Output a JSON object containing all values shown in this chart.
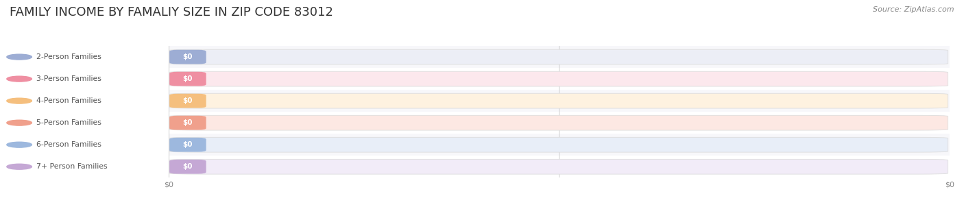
{
  "title": "FAMILY INCOME BY FAMALIY SIZE IN ZIP CODE 83012",
  "source": "Source: ZipAtlas.com",
  "categories": [
    "2-Person Families",
    "3-Person Families",
    "4-Person Families",
    "5-Person Families",
    "6-Person Families",
    "7+ Person Families"
  ],
  "values": [
    0,
    0,
    0,
    0,
    0,
    0
  ],
  "bar_colors": [
    "#9dadd4",
    "#ef8fa2",
    "#f5bf7e",
    "#f0a08c",
    "#9db8de",
    "#c5a8d5"
  ],
  "bar_bg_colors": [
    "#eceef6",
    "#fce8ed",
    "#fef2e0",
    "#fde8e3",
    "#e8eef8",
    "#f2ecf8"
  ],
  "value_labels": [
    "$0",
    "$0",
    "$0",
    "$0",
    "$0",
    "$0"
  ],
  "background_color": "#ffffff",
  "row_colors": [
    "#f7f7fa",
    "#ffffff",
    "#f7f7fa",
    "#ffffff",
    "#f7f7fa",
    "#ffffff"
  ],
  "title_fontsize": 13,
  "source_fontsize": 8,
  "grid_color": "#cccccc",
  "bar_edge_color": "#dddddd",
  "label_color": "#555555",
  "value_text_color": "#ffffff"
}
